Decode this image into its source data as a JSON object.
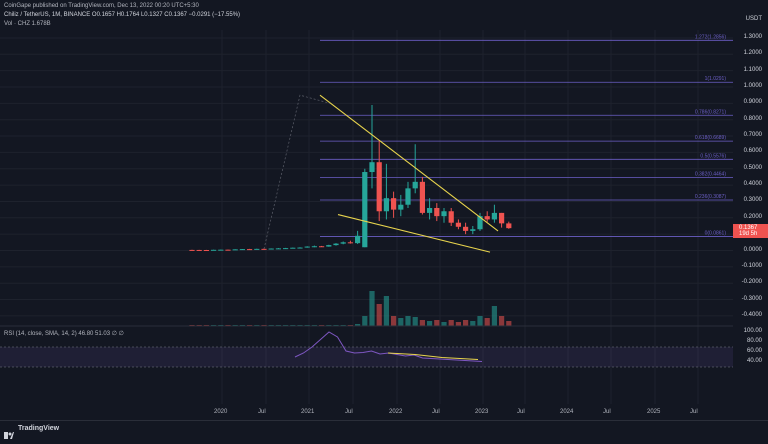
{
  "header": {
    "publish_line": "CoinGape published on TradingView.com, Dec 13, 2022 00:20 UTC+5:30",
    "symbol_line": "Chiliz / TetherUS, 1M, BINANCE  O0.1657  H0.1764  L0.1327  C0.1367  −0.0291 (−17.55%)",
    "volume_line": "Vol · CHZ  1.678B"
  },
  "price_axis": {
    "currency": "USDT",
    "ticks": [
      "1.3000",
      "1.2000",
      "1.1000",
      "1.0000",
      "0.9000",
      "0.8000",
      "0.7000",
      "0.6000",
      "0.5000",
      "0.4000",
      "0.3000",
      "0.2000",
      "0.1000",
      "0.0000",
      "-0.1000",
      "-0.2000",
      "-0.3000",
      "-0.4000"
    ],
    "last_price": "0.1367",
    "countdown": "19d 5h"
  },
  "fib_levels": [
    {
      "label": "1.272(1.2856)",
      "value": 1.2856
    },
    {
      "label": "1(1.0291)",
      "value": 1.0291
    },
    {
      "label": "0.786(0.8271)",
      "value": 0.8271
    },
    {
      "label": "0.618(0.6689)",
      "value": 0.6689
    },
    {
      "label": "0.5(0.5576)",
      "value": 0.5576
    },
    {
      "label": "0.382(0.4464)",
      "value": 0.4464
    },
    {
      "label": "0.236(0.3087)",
      "value": 0.3087
    },
    {
      "label": "0(0.0861)",
      "value": 0.0861
    }
  ],
  "rsi": {
    "legend": "RSI (14, close, SMA, 14, 2)  46.80  51.03  ∅  ∅",
    "ticks": [
      "100.00",
      "80.00",
      "60.00",
      "40.00"
    ]
  },
  "time_axis": {
    "labels": [
      "2020",
      "Jul",
      "2021",
      "Jul",
      "2022",
      "Jul",
      "2023",
      "Jul",
      "2024",
      "Jul",
      "2025",
      "Jul"
    ]
  },
  "footer": {
    "brand": "TradingView"
  },
  "colors": {
    "background": "#131722",
    "up": "#26a69a",
    "down": "#ef5350",
    "wedge": "#e8d44d",
    "fib": "#6c5fc7",
    "rsi": "#7e57c2"
  },
  "candles": [
    {
      "o": 0.0035,
      "h": 0.0045,
      "l": 0.0028,
      "c": 0.0033
    },
    {
      "o": 0.0033,
      "h": 0.004,
      "l": 0.0026,
      "c": 0.003
    },
    {
      "o": 0.003,
      "h": 0.0038,
      "l": 0.0022,
      "c": 0.0028
    },
    {
      "o": 0.0028,
      "h": 0.0048,
      "l": 0.0025,
      "c": 0.0042
    },
    {
      "o": 0.0042,
      "h": 0.006,
      "l": 0.0036,
      "c": 0.005
    },
    {
      "o": 0.005,
      "h": 0.0058,
      "l": 0.004,
      "c": 0.0045
    },
    {
      "o": 0.0045,
      "h": 0.0075,
      "l": 0.0043,
      "c": 0.007
    },
    {
      "o": 0.007,
      "h": 0.009,
      "l": 0.006,
      "c": 0.0085
    },
    {
      "o": 0.0085,
      "h": 0.01,
      "l": 0.007,
      "c": 0.0078
    },
    {
      "o": 0.0078,
      "h": 0.011,
      "l": 0.0075,
      "c": 0.01
    },
    {
      "o": 0.01,
      "h": 0.012,
      "l": 0.0085,
      "c": 0.0095
    },
    {
      "o": 0.0095,
      "h": 0.013,
      "l": 0.009,
      "c": 0.012
    },
    {
      "o": 0.012,
      "h": 0.015,
      "l": 0.011,
      "c": 0.013
    },
    {
      "o": 0.013,
      "h": 0.016,
      "l": 0.012,
      "c": 0.0145
    },
    {
      "o": 0.0145,
      "h": 0.018,
      "l": 0.014,
      "c": 0.017
    },
    {
      "o": 0.017,
      "h": 0.02,
      "l": 0.015,
      "c": 0.018
    },
    {
      "o": 0.018,
      "h": 0.026,
      "l": 0.017,
      "c": 0.024
    },
    {
      "o": 0.024,
      "h": 0.03,
      "l": 0.02,
      "c": 0.026
    },
    {
      "o": 0.026,
      "h": 0.028,
      "l": 0.022,
      "c": 0.024
    },
    {
      "o": 0.024,
      "h": 0.035,
      "l": 0.023,
      "c": 0.033
    },
    {
      "o": 0.033,
      "h": 0.045,
      "l": 0.03,
      "c": 0.042
    },
    {
      "o": 0.042,
      "h": 0.055,
      "l": 0.038,
      "c": 0.05
    },
    {
      "o": 0.05,
      "h": 0.06,
      "l": 0.042,
      "c": 0.045
    },
    {
      "o": 0.045,
      "h": 0.12,
      "l": 0.04,
      "c": 0.09
    },
    {
      "o": 0.02,
      "h": 0.5,
      "l": 0.02,
      "c": 0.48
    },
    {
      "o": 0.48,
      "h": 0.89,
      "l": 0.38,
      "c": 0.54
    },
    {
      "o": 0.54,
      "h": 0.67,
      "l": 0.18,
      "c": 0.24
    },
    {
      "o": 0.24,
      "h": 0.53,
      "l": 0.19,
      "c": 0.32
    },
    {
      "o": 0.32,
      "h": 0.36,
      "l": 0.2,
      "c": 0.25
    },
    {
      "o": 0.25,
      "h": 0.34,
      "l": 0.21,
      "c": 0.28
    },
    {
      "o": 0.28,
      "h": 0.42,
      "l": 0.26,
      "c": 0.38
    },
    {
      "o": 0.38,
      "h": 0.65,
      "l": 0.35,
      "c": 0.42
    },
    {
      "o": 0.42,
      "h": 0.45,
      "l": 0.22,
      "c": 0.23
    },
    {
      "o": 0.23,
      "h": 0.32,
      "l": 0.19,
      "c": 0.26
    },
    {
      "o": 0.26,
      "h": 0.29,
      "l": 0.18,
      "c": 0.21
    },
    {
      "o": 0.21,
      "h": 0.26,
      "l": 0.17,
      "c": 0.24
    },
    {
      "o": 0.24,
      "h": 0.26,
      "l": 0.15,
      "c": 0.17
    },
    {
      "o": 0.17,
      "h": 0.19,
      "l": 0.13,
      "c": 0.145
    },
    {
      "o": 0.145,
      "h": 0.17,
      "l": 0.1,
      "c": 0.12
    },
    {
      "o": 0.12,
      "h": 0.15,
      "l": 0.1,
      "c": 0.13
    },
    {
      "o": 0.13,
      "h": 0.23,
      "l": 0.12,
      "c": 0.21
    },
    {
      "o": 0.21,
      "h": 0.24,
      "l": 0.175,
      "c": 0.19
    },
    {
      "o": 0.19,
      "h": 0.28,
      "l": 0.17,
      "c": 0.23
    },
    {
      "o": 0.23,
      "h": 0.23,
      "l": 0.14,
      "c": 0.166
    },
    {
      "o": 0.1657,
      "h": 0.1764,
      "l": 0.1327,
      "c": 0.1367
    }
  ]
}
